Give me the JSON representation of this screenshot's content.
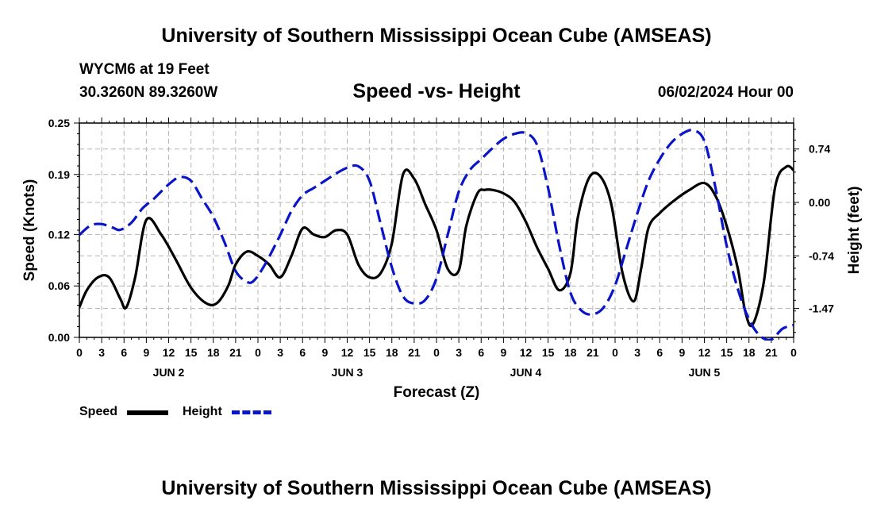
{
  "header": {
    "title_top": "University of Southern Mississippi Ocean Cube (AMSEAS)",
    "title_bottom": "University of Southern Mississippi Ocean Cube (AMSEAS)",
    "station": "WYCM6 at 19 Feet",
    "coords": "30.3260N  89.3260W",
    "subtitle": "Speed -vs- Height",
    "datetime": "06/02/2024 Hour 00"
  },
  "legend": {
    "speed_label": "Speed",
    "height_label": "Height"
  },
  "colors": {
    "speed": "#000000",
    "height": "#0a14c8",
    "grid": "#b4b4b4"
  },
  "chart_data": {
    "type": "line",
    "title": "Speed -vs- Height",
    "xlabel": "Forecast (Z)",
    "ylabel_left": "Speed (Knots)",
    "ylabel_right": "Height (feet)",
    "x_unit": "forecast hours from 06/02/2024 00Z",
    "xlim": [
      0,
      96
    ],
    "ylim_left": [
      0,
      0.25
    ],
    "ylim_right": [
      -1.87,
      1.1
    ],
    "grid": true,
    "x_tick_values": [
      0,
      3,
      6,
      9,
      12,
      15,
      18,
      21,
      24,
      27,
      30,
      33,
      36,
      39,
      42,
      45,
      48,
      51,
      54,
      57,
      60,
      63,
      66,
      69,
      72,
      75,
      78,
      81,
      84,
      87,
      90,
      93,
      96
    ],
    "x_tick_labels": [
      "0",
      "3",
      "6",
      "9",
      "12",
      "15",
      "18",
      "21",
      "0",
      "3",
      "6",
      "9",
      "12",
      "15",
      "18",
      "21",
      "0",
      "3",
      "6",
      "9",
      "12",
      "15",
      "18",
      "21",
      "0",
      "3",
      "6",
      "9",
      "12",
      "15",
      "18",
      "21",
      "0"
    ],
    "day_labels": [
      {
        "label": "JUN 2",
        "x": 12
      },
      {
        "label": "JUN 3",
        "x": 36
      },
      {
        "label": "JUN 4",
        "x": 60
      },
      {
        "label": "JUN 5",
        "x": 84
      }
    ],
    "y_left_ticks": [
      {
        "value": 0.0,
        "label": "0.00"
      },
      {
        "value": 0.06,
        "label": "0.06"
      },
      {
        "value": 0.12,
        "label": "0.12"
      },
      {
        "value": 0.19,
        "label": "0.19"
      },
      {
        "value": 0.25,
        "label": "0.25"
      }
    ],
    "y_right_ticks": [
      {
        "value": 0.74,
        "label": "0.74"
      },
      {
        "value": 0.0,
        "label": "0.00"
      },
      {
        "value": -0.74,
        "label": "-0.74"
      },
      {
        "value": -1.47,
        "label": "-1.47"
      }
    ],
    "series": [
      {
        "name": "Speed",
        "axis": "left",
        "style": "solid",
        "x": [
          0,
          1,
          2.5,
          4,
          5.5,
          6.3,
          7.5,
          9,
          11,
          13,
          15,
          17,
          18.5,
          20,
          21,
          22.5,
          24,
          25.5,
          27,
          28.5,
          30,
          31.5,
          33,
          34.5,
          36,
          37.5,
          39,
          40.5,
          42,
          43.5,
          45,
          46.5,
          48,
          49.5,
          51,
          52,
          53.5,
          54.5,
          55.5,
          57,
          58.5,
          60,
          61.5,
          63,
          64.5,
          66,
          67,
          68.5,
          70,
          71.5,
          73,
          74.5,
          75.5,
          76.5,
          78,
          80,
          82,
          84,
          85.5,
          87,
          88.5,
          89.5,
          90.5,
          92,
          93.5,
          95,
          96
        ],
        "values": [
          0.035,
          0.055,
          0.07,
          0.07,
          0.045,
          0.035,
          0.07,
          0.137,
          0.12,
          0.09,
          0.058,
          0.04,
          0.04,
          0.06,
          0.085,
          0.1,
          0.095,
          0.085,
          0.07,
          0.095,
          0.127,
          0.12,
          0.117,
          0.125,
          0.12,
          0.085,
          0.07,
          0.075,
          0.11,
          0.19,
          0.185,
          0.155,
          0.125,
          0.08,
          0.078,
          0.13,
          0.168,
          0.172,
          0.172,
          0.168,
          0.158,
          0.135,
          0.105,
          0.08,
          0.055,
          0.075,
          0.14,
          0.186,
          0.188,
          0.155,
          0.075,
          0.042,
          0.08,
          0.128,
          0.145,
          0.16,
          0.172,
          0.18,
          0.165,
          0.13,
          0.08,
          0.03,
          0.015,
          0.065,
          0.175,
          0.199,
          0.195
        ]
      },
      {
        "name": "Height",
        "axis": "right",
        "style": "dashed",
        "x": [
          0,
          1.5,
          3,
          4.5,
          5.5,
          7,
          8.5,
          10,
          12,
          13.5,
          15,
          16.5,
          18,
          19.5,
          21,
          22.5,
          23.5,
          25,
          27,
          28.5,
          30,
          31.5,
          33,
          34.5,
          36,
          37.5,
          39,
          40.5,
          42,
          43.5,
          45,
          46.5,
          48,
          49.5,
          51,
          52.5,
          54,
          55.5,
          57,
          58.5,
          60,
          61.5,
          63,
          64.5,
          66,
          67.5,
          69,
          70.5,
          72,
          73.5,
          75,
          76.5,
          78,
          79.5,
          81,
          82.5,
          84,
          85.5,
          87,
          88.5,
          90,
          91.5,
          93,
          94.5,
          96
        ],
        "values": [
          -0.45,
          -0.32,
          -0.3,
          -0.35,
          -0.38,
          -0.28,
          -0.08,
          0.05,
          0.25,
          0.35,
          0.3,
          0.05,
          -0.2,
          -0.55,
          -0.95,
          -1.1,
          -1.08,
          -0.85,
          -0.45,
          -0.12,
          0.1,
          0.2,
          0.3,
          0.4,
          0.48,
          0.5,
          0.3,
          -0.3,
          -0.9,
          -1.3,
          -1.4,
          -1.35,
          -1.05,
          -0.45,
          0.15,
          0.45,
          0.6,
          0.75,
          0.88,
          0.95,
          0.96,
          0.8,
          0.2,
          -0.6,
          -1.25,
          -1.5,
          -1.55,
          -1.45,
          -1.15,
          -0.65,
          -0.15,
          0.3,
          0.6,
          0.82,
          0.95,
          1.0,
          0.85,
          0.2,
          -0.6,
          -1.2,
          -1.62,
          -1.85,
          -1.9,
          -1.75,
          -1.7
        ]
      }
    ]
  }
}
